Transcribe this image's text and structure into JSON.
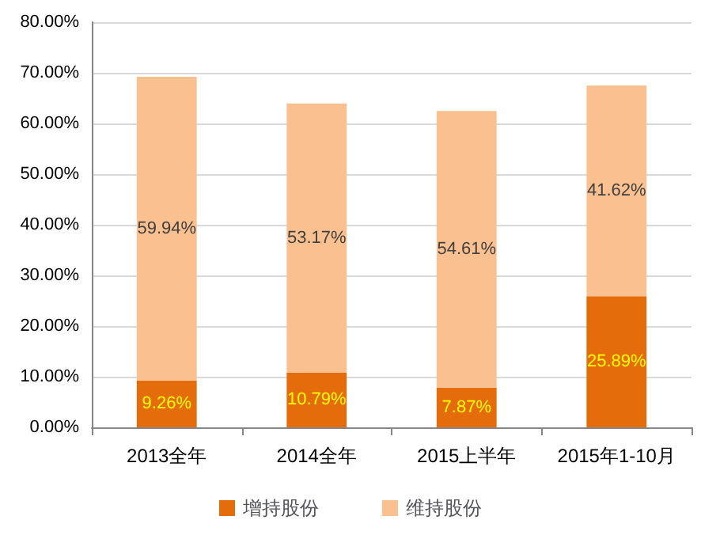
{
  "chart_data": {
    "type": "bar",
    "stacked": true,
    "categories": [
      "2013全年",
      "2014全年",
      "2015上半年",
      "2015年1-10月"
    ],
    "series": [
      {
        "name": "增持股份",
        "color": "#e46c0a",
        "values": [
          9.26,
          10.79,
          7.87,
          25.89
        ],
        "value_labels": [
          "9.26%",
          "10.79%",
          "7.87%",
          "25.89%"
        ]
      },
      {
        "name": "维持股份",
        "color": "#fac090",
        "values": [
          59.94,
          53.17,
          54.61,
          41.62
        ],
        "value_labels": [
          "59.94%",
          "53.17%",
          "54.61%",
          "41.62%"
        ]
      }
    ],
    "ylim": [
      0,
      80
    ],
    "yticks": [
      {
        "value": 0,
        "label": "0.00%"
      },
      {
        "value": 10,
        "label": "10.00%"
      },
      {
        "value": 20,
        "label": "20.00%"
      },
      {
        "value": 30,
        "label": "30.00%"
      },
      {
        "value": 40,
        "label": "40.00%"
      },
      {
        "value": 50,
        "label": "50.00%"
      },
      {
        "value": 60,
        "label": "60.00%"
      },
      {
        "value": 70,
        "label": "70.00%"
      },
      {
        "value": 80,
        "label": "80.00%"
      }
    ],
    "grid": "y",
    "legend": "bottom"
  }
}
